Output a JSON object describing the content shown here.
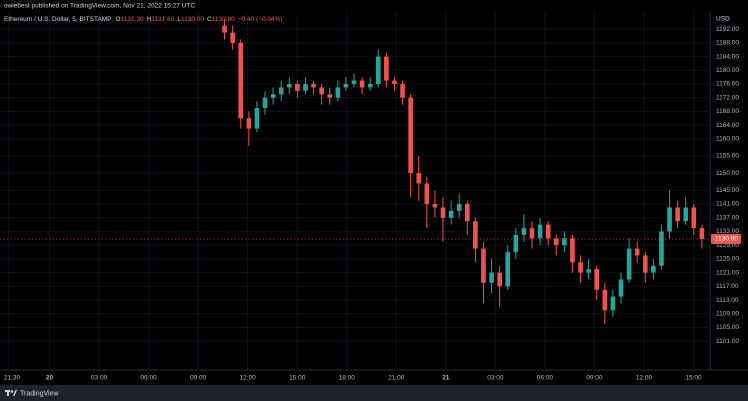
{
  "header": "owlebest published on TradingView.com, Nov 21, 2022 15:27 UTC",
  "footer": "TradingView",
  "chart_data": {
    "type": "candlestick",
    "symbol": "Ethereum / U.S. Dollar, 5, BITSTAMP",
    "legend": [
      {
        "label": "O",
        "value": "1131.30"
      },
      {
        "label": "H",
        "value": "1131.60"
      },
      {
        "label": "L",
        "value": "1130.00"
      },
      {
        "label": "C",
        "value": "1130.80"
      }
    ],
    "change": "−0.40 (−0.04%)",
    "currency": "USD",
    "up_color": "#26a69a",
    "down_color": "#ef5350",
    "last_price": {
      "value": 1130.8,
      "label": "1130.80"
    },
    "xlim": [
      -3,
      40
    ],
    "ylim": [
      1092.6,
      1197
    ],
    "xticks": [
      {
        "value": -2.5,
        "label": "21:30"
      },
      {
        "value": 0,
        "label": "20"
      },
      {
        "value": 3,
        "label": "03:00"
      },
      {
        "value": 6,
        "label": "06:00"
      },
      {
        "value": 9,
        "label": "09:00"
      },
      {
        "value": 12,
        "label": "12:00"
      },
      {
        "value": 15,
        "label": "15:00"
      },
      {
        "value": 18,
        "label": "18:00"
      },
      {
        "value": 21,
        "label": "21:00"
      },
      {
        "value": 24,
        "label": "21"
      },
      {
        "value": 27,
        "label": "03:00"
      },
      {
        "value": 30,
        "label": "06:00"
      },
      {
        "value": 33,
        "label": "09:00"
      },
      {
        "value": 36,
        "label": "12:00"
      },
      {
        "value": 39,
        "label": "15:00"
      }
    ],
    "yticks": [
      {
        "value": 1192,
        "label": "1192.00"
      },
      {
        "value": 1188,
        "label": "1188.00"
      },
      {
        "value": 1184,
        "label": "1184.00"
      },
      {
        "value": 1180,
        "label": "1180.00"
      },
      {
        "value": 1176,
        "label": "1176.00"
      },
      {
        "value": 1172,
        "label": "1172.00"
      },
      {
        "value": 1168,
        "label": "1168.00"
      },
      {
        "value": 1164,
        "label": "1164.00"
      },
      {
        "value": 1160,
        "label": "1160.00"
      },
      {
        "value": 1155,
        "label": "1155.00"
      },
      {
        "value": 1150,
        "label": "1150.00"
      },
      {
        "value": 1145,
        "label": "1145.00"
      },
      {
        "value": 1141,
        "label": "1141.00"
      },
      {
        "value": 1137,
        "label": "1137.00"
      },
      {
        "value": 1133,
        "label": "1133.00"
      },
      {
        "value": 1129,
        "label": "1129.00"
      },
      {
        "value": 1125,
        "label": "1125.00"
      },
      {
        "value": 1121,
        "label": "1121.00"
      },
      {
        "value": 1117,
        "label": "1117.00"
      },
      {
        "value": 1113,
        "label": "1113.00"
      },
      {
        "value": 1109,
        "label": "1109.00"
      },
      {
        "value": 1105,
        "label": "1105.00"
      },
      {
        "value": 1101,
        "label": "1101.00"
      }
    ],
    "x": [
      10.6,
      11.09,
      11.58,
      12.07,
      12.56,
      13.05,
      13.54,
      14.03,
      14.52,
      15.01,
      15.5,
      15.99,
      16.48,
      16.97,
      17.46,
      17.95,
      18.44,
      18.93,
      19.42,
      19.91,
      20.4,
      20.89,
      21.38,
      21.87,
      22.36,
      22.85,
      23.34,
      23.83,
      24.32,
      24.81,
      25.3,
      25.79,
      26.28,
      26.77,
      27.26,
      27.75,
      28.24,
      28.73,
      29.22,
      29.71,
      30.2,
      30.69,
      31.18,
      31.67,
      32.16,
      32.65,
      33.14,
      33.63,
      34.12,
      34.61,
      35.1,
      35.59,
      36.08,
      36.57,
      37.06,
      37.55,
      38.04,
      38.53,
      39.02,
      39.51
    ],
    "open": [
      1193,
      1191,
      1188,
      1166,
      1163,
      1169,
      1172,
      1173,
      1175,
      1176,
      1174,
      1176,
      1175,
      1173,
      1172,
      1175,
      1176,
      1177,
      1175,
      1176,
      1184,
      1177,
      1176,
      1172,
      1150,
      1147,
      1141,
      1140,
      1137,
      1139,
      1141,
      1136,
      1128,
      1118,
      1121,
      1117,
      1127,
      1132,
      1134,
      1131,
      1135,
      1131,
      1129,
      1131,
      1124,
      1121,
      1122,
      1116,
      1110,
      1114,
      1119,
      1128,
      1126,
      1121,
      1123,
      1133,
      1140,
      1136,
      1140,
      1134
    ],
    "high": [
      1195,
      1193,
      1189,
      1168,
      1171,
      1174,
      1175,
      1177,
      1178,
      1177,
      1178,
      1177,
      1176,
      1175,
      1177,
      1178,
      1179,
      1178,
      1178,
      1186,
      1185,
      1178,
      1177,
      1173,
      1155,
      1149,
      1145,
      1143,
      1142,
      1144,
      1142,
      1137,
      1130,
      1125,
      1123,
      1129,
      1134,
      1138,
      1136,
      1137,
      1136,
      1132,
      1133,
      1132,
      1126,
      1125,
      1123,
      1118,
      1116,
      1121,
      1131,
      1130,
      1127,
      1125,
      1135,
      1145,
      1142,
      1143,
      1141,
      1135
    ],
    "low": [
      1189,
      1186,
      1163,
      1158,
      1162,
      1167,
      1170,
      1171,
      1173,
      1172,
      1173,
      1173,
      1170,
      1170,
      1171,
      1174,
      1175,
      1173,
      1174,
      1175,
      1175,
      1174,
      1170,
      1143,
      1142,
      1134,
      1137,
      1130,
      1135,
      1137,
      1132,
      1124,
      1112,
      1115,
      1111,
      1116,
      1125,
      1130,
      1128,
      1129,
      1129,
      1126,
      1127,
      1121,
      1118,
      1119,
      1113,
      1106,
      1108,
      1112,
      1118,
      1124,
      1118,
      1119,
      1122,
      1131,
      1134,
      1135,
      1132,
      1128
    ],
    "close": [
      1191,
      1188,
      1166,
      1163,
      1169,
      1172,
      1173,
      1175,
      1176,
      1174,
      1176,
      1175,
      1173,
      1172,
      1175,
      1176,
      1177,
      1175,
      1176,
      1184,
      1177,
      1176,
      1172,
      1150,
      1147,
      1141,
      1140,
      1137,
      1139,
      1141,
      1136,
      1128,
      1118,
      1121,
      1117,
      1127,
      1132,
      1134,
      1131,
      1135,
      1131,
      1129,
      1131,
      1124,
      1121,
      1122,
      1116,
      1110,
      1114,
      1119,
      1128,
      1126,
      1121,
      1123,
      1133,
      1140,
      1136,
      1140,
      1134,
      1130.8
    ]
  }
}
